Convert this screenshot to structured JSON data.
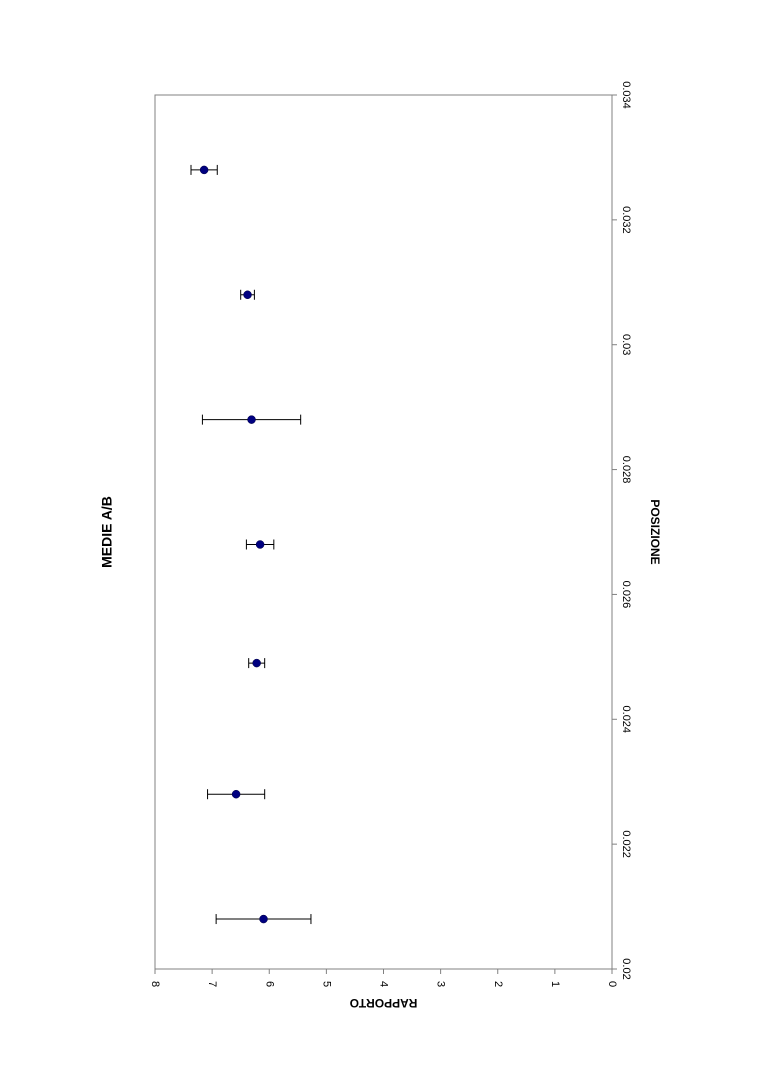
{
  "chart_data": {
    "type": "scatter",
    "title": "MEDIE A/B",
    "xlabel": "POSIZIONE",
    "ylabel": "RAPPORTO",
    "orientation": "rotated-90-clockwise",
    "xlim": [
      0.02,
      0.034
    ],
    "ylim": [
      0,
      8
    ],
    "x_ticks": [
      "0.02",
      "0.022",
      "0.024",
      "0.026",
      "0.028",
      "0.03",
      "0.032",
      "0.034"
    ],
    "y_ticks": [
      "0",
      "1",
      "2",
      "3",
      "4",
      "5",
      "6",
      "7",
      "8"
    ],
    "grid": false,
    "legend": "none",
    "marker_color": "#000080",
    "series": [
      {
        "x": [
          0.0208,
          0.0228,
          0.0249,
          0.0268,
          0.0288,
          0.0308,
          0.0328
        ],
        "y": [
          6.1,
          6.58,
          6.22,
          6.16,
          6.31,
          6.38,
          7.14
        ],
        "err_low": [
          5.27,
          6.08,
          6.08,
          5.92,
          5.45,
          6.26,
          6.91
        ],
        "err_high": [
          6.93,
          7.08,
          6.36,
          6.4,
          7.17,
          6.5,
          7.37
        ]
      }
    ]
  }
}
